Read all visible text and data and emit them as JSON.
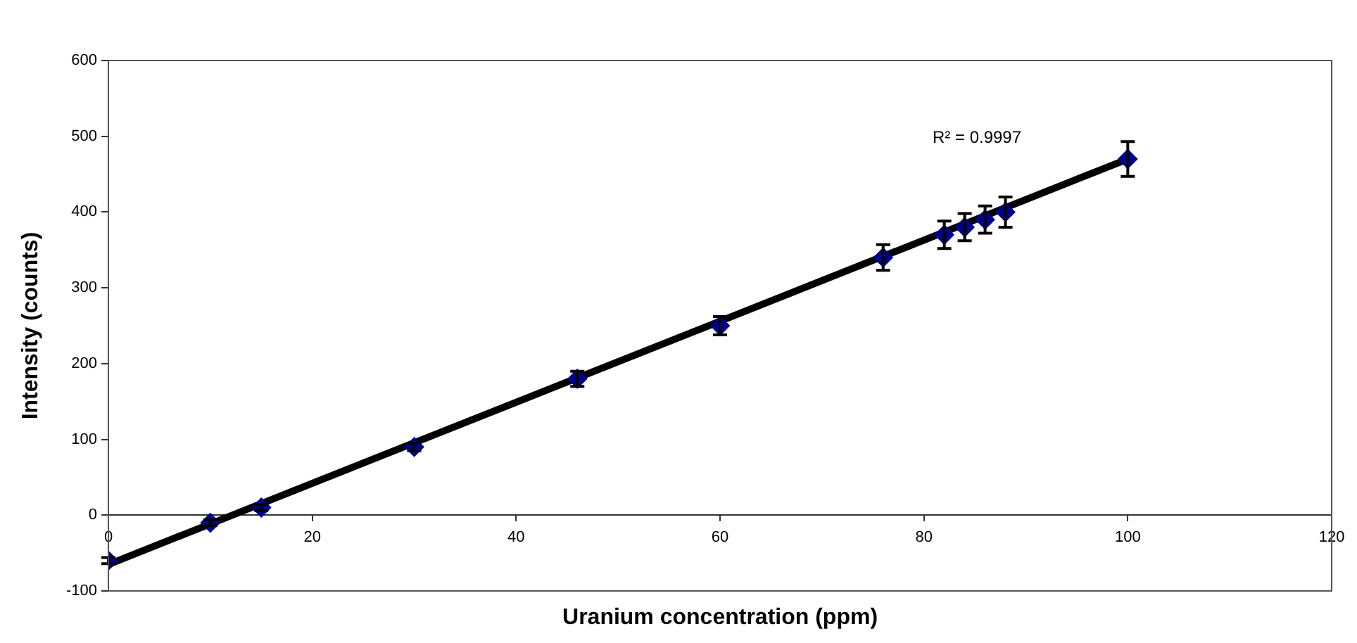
{
  "chart_data": {
    "type": "scatter",
    "xlabel": "Uranium concentration (ppm)",
    "ylabel": "Intensity (counts)",
    "x": [
      0,
      10,
      15,
      30,
      46,
      60,
      76,
      82,
      84,
      86,
      88,
      100
    ],
    "series": [
      {
        "color": "#00008b",
        "marker": "diamond",
        "values": [
          -60,
          -10,
          10,
          90,
          180,
          250,
          340,
          370,
          380,
          390,
          400,
          470
        ],
        "errors": [
          4,
          4,
          4,
          5,
          10,
          12,
          17,
          18,
          18,
          18,
          20,
          23
        ]
      },
      {
        "type": "line",
        "color": "#000000",
        "marker": "none",
        "x": [
          0,
          100
        ],
        "values": [
          -65,
          470
        ]
      }
    ],
    "annotations": [
      "R² = 0.9997"
    ],
    "xlim": [
      0,
      120
    ],
    "xticks": [
      0,
      20,
      40,
      60,
      80,
      100,
      120
    ],
    "ylim": [
      -100,
      600
    ],
    "yticks": [
      -100,
      0,
      100,
      200,
      300,
      400,
      500,
      600
    ],
    "grid": false,
    "legend": false
  }
}
